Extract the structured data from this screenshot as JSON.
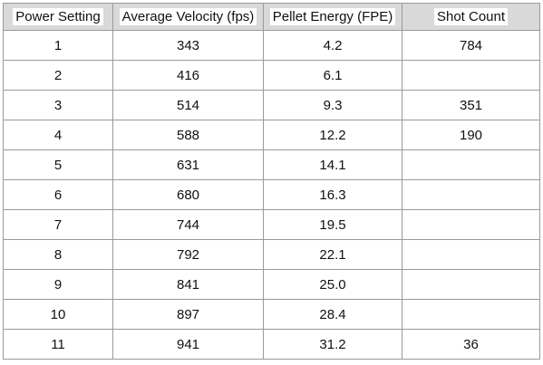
{
  "columns": [
    "Power Setting",
    "Average Velocity (fps)",
    "Pellet Energy (FPE)",
    "Shot Count"
  ],
  "rows": [
    [
      "1",
      "343",
      "4.2",
      "784"
    ],
    [
      "2",
      "416",
      "6.1",
      ""
    ],
    [
      "3",
      "514",
      "9.3",
      "351"
    ],
    [
      "4",
      "588",
      "12.2",
      "190"
    ],
    [
      "5",
      "631",
      "14.1",
      ""
    ],
    [
      "6",
      "680",
      "16.3",
      ""
    ],
    [
      "7",
      "744",
      "19.5",
      ""
    ],
    [
      "8",
      "792",
      "22.1",
      ""
    ],
    [
      "9",
      "841",
      "25.0",
      ""
    ],
    [
      "10",
      "897",
      "28.4",
      ""
    ],
    [
      "11",
      "941",
      "31.2",
      "36"
    ]
  ],
  "colors": {
    "header_background": "#d9d9d9",
    "border": "#9a9a9a"
  }
}
